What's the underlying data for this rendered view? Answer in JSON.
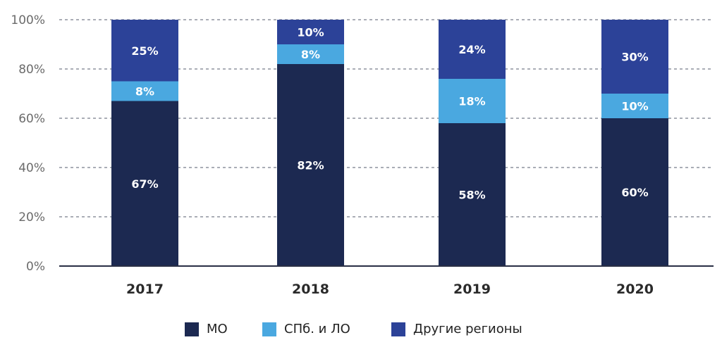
{
  "chart_data": {
    "type": "bar",
    "stacked": true,
    "percent": true,
    "title": "",
    "xlabel": "",
    "ylabel": "",
    "categories": [
      "2017",
      "2018",
      "2019",
      "2020"
    ],
    "series": [
      {
        "name": "МО",
        "color": "#1c2951",
        "values": [
          67,
          82,
          58,
          60
        ],
        "labels": [
          "67%",
          "82%",
          "58%",
          "60%"
        ]
      },
      {
        "name": "СПб. и ЛО",
        "color": "#4aa8e0",
        "values": [
          8,
          8,
          18,
          10
        ],
        "labels": [
          "8%",
          "8%",
          "18%",
          "10%"
        ]
      },
      {
        "name": "Другие регионы",
        "color": "#2c4298",
        "values": [
          25,
          10,
          24,
          30
        ],
        "labels": [
          "25%",
          "10%",
          "24%",
          "30%"
        ]
      }
    ],
    "ylim": [
      0,
      100
    ],
    "yticks": [
      0,
      20,
      40,
      60,
      80,
      100
    ],
    "ytick_labels": [
      "0%",
      "20%",
      "40%",
      "60%",
      "80%",
      "100%"
    ],
    "grid": "horizontal dashed",
    "legend_position": "bottom-center"
  },
  "legend": {
    "items": [
      {
        "label": "МО",
        "color": "#1c2951"
      },
      {
        "label": "СПб. и ЛО",
        "color": "#4aa8e0"
      },
      {
        "label": "Другие регионы",
        "color": "#2c4298"
      }
    ]
  }
}
